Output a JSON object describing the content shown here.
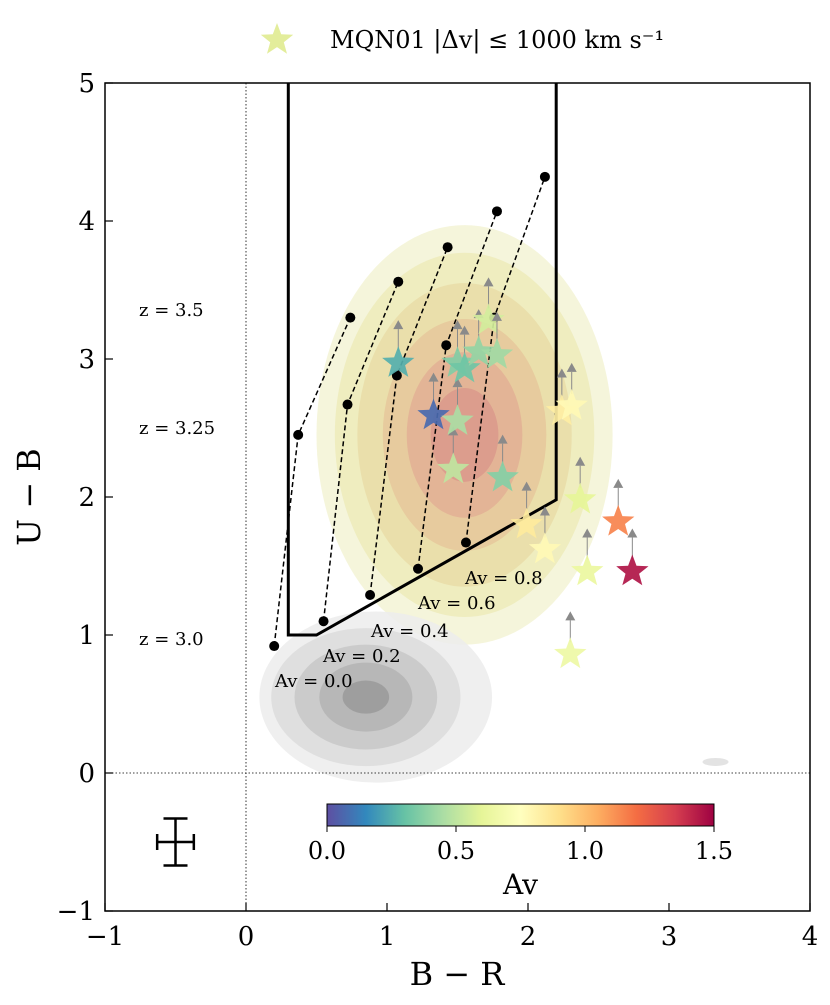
{
  "chart_data": {
    "type": "scatter",
    "xlabel": "B − R",
    "ylabel": "U − B",
    "xlim": [
      -1,
      4
    ],
    "ylim": [
      -1,
      5
    ],
    "x_ticks": [
      -1,
      0,
      1,
      2,
      3,
      4
    ],
    "y_ticks": [
      -1,
      0,
      1,
      2,
      3,
      4,
      5
    ],
    "x_tick_labels": [
      "−1",
      "0",
      "1",
      "2",
      "3",
      "4"
    ],
    "y_tick_labels": [
      "−1",
      "0",
      "1",
      "2",
      "3",
      "4",
      "5"
    ],
    "grid": false,
    "reference_lines": [
      {
        "axis": "x",
        "value": 0,
        "style": "dotted"
      },
      {
        "axis": "y",
        "value": 0,
        "style": "dotted"
      }
    ],
    "legend": {
      "position": "top-center",
      "entries": [
        {
          "label": "MQN01 |Δv| ≤ 1000 km s⁻¹",
          "marker": "star",
          "color": "#e3ed9b"
        }
      ]
    },
    "selection_box": [
      [
        0.3,
        5.0
      ],
      [
        0.3,
        1.0
      ],
      [
        0.5,
        1.0
      ],
      [
        2.2,
        1.98
      ],
      [
        2.2,
        5.0
      ]
    ],
    "tracks": [
      {
        "av": 0.0,
        "label": "Av = 0.0",
        "points": [
          [
            0.2,
            0.92
          ],
          [
            0.37,
            2.45
          ],
          [
            0.74,
            3.3
          ]
        ]
      },
      {
        "av": 0.2,
        "label": "Av = 0.2",
        "points": [
          [
            0.55,
            1.1
          ],
          [
            0.72,
            2.67
          ],
          [
            1.08,
            3.56
          ]
        ]
      },
      {
        "av": 0.4,
        "label": "Av = 0.4",
        "points": [
          [
            0.88,
            1.29
          ],
          [
            1.07,
            2.88
          ],
          [
            1.43,
            3.81
          ]
        ]
      },
      {
        "av": 0.6,
        "label": "Av = 0.6",
        "points": [
          [
            1.22,
            1.48
          ],
          [
            1.42,
            3.1
          ],
          [
            1.78,
            4.07
          ]
        ]
      },
      {
        "av": 0.8,
        "label": "Av = 0.8",
        "points": [
          [
            1.56,
            1.67
          ],
          [
            1.76,
            3.3
          ],
          [
            2.12,
            4.32
          ]
        ]
      }
    ],
    "redshift_labels": [
      "z = 3.0",
      "z = 3.25",
      "z = 3.5"
    ],
    "error_bar": {
      "x": -0.5,
      "y": -0.5,
      "xerr": 0.13,
      "yerr": 0.17
    },
    "colorbar": {
      "label": "Av",
      "min": 0.0,
      "max": 1.5,
      "ticks": [
        0.0,
        0.5,
        1.0,
        1.5
      ],
      "tick_labels": [
        "0.0",
        "0.5",
        "1.0",
        "1.5"
      ],
      "colormap": "Spectral_r"
    },
    "stars": [
      {
        "x": 1.08,
        "y": 2.97,
        "av": 0.25
      },
      {
        "x": 1.33,
        "y": 2.59,
        "av": 0.07
      },
      {
        "x": 1.47,
        "y": 2.2,
        "av": 0.5
      },
      {
        "x": 1.5,
        "y": 2.55,
        "av": 0.45
      },
      {
        "x": 1.5,
        "y": 2.97,
        "av": 0.36
      },
      {
        "x": 1.55,
        "y": 2.93,
        "av": 0.32
      },
      {
        "x": 1.65,
        "y": 3.05,
        "av": 0.4
      },
      {
        "x": 1.72,
        "y": 3.28,
        "av": 0.55
      },
      {
        "x": 1.78,
        "y": 3.03,
        "av": 0.43
      },
      {
        "x": 1.82,
        "y": 2.14,
        "av": 0.37
      },
      {
        "x": 1.99,
        "y": 1.8,
        "av": 0.85
      },
      {
        "x": 2.12,
        "y": 1.62,
        "av": 0.78
      },
      {
        "x": 2.24,
        "y": 2.62,
        "av": 0.83
      },
      {
        "x": 2.31,
        "y": 2.66,
        "av": 0.78
      },
      {
        "x": 2.3,
        "y": 0.86,
        "av": 0.65
      },
      {
        "x": 2.37,
        "y": 1.98,
        "av": 0.6
      },
      {
        "x": 2.42,
        "y": 1.46,
        "av": 0.63
      },
      {
        "x": 2.64,
        "y": 1.82,
        "av": 1.15
      },
      {
        "x": 2.74,
        "y": 1.46,
        "av": 1.45
      }
    ],
    "density_contours": [
      {
        "population": "MQN01 members",
        "color_scale": "yellow-to-red",
        "levels": 6,
        "center": [
          1.55,
          2.45
        ]
      },
      {
        "population": "low-z galaxies",
        "color_scale": "grey",
        "levels": 5,
        "center": [
          0.8,
          0.55
        ]
      }
    ]
  }
}
